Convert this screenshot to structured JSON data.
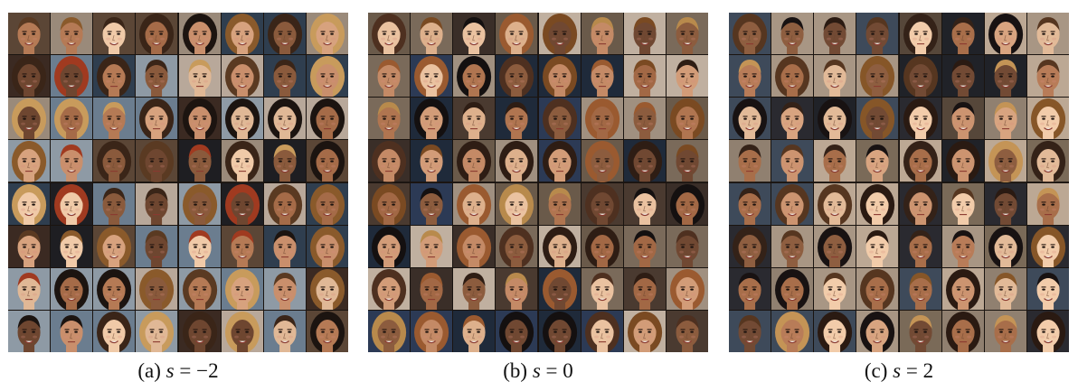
{
  "panels": [
    {
      "caption": {
        "prefix": "(a)",
        "variable": "s",
        "relation": "=",
        "value": "−2"
      },
      "grid": {
        "rows": 8,
        "cols": 8
      },
      "palette": [
        "#c98f6c",
        "#b57a55",
        "#e0b896",
        "#8a5a3c",
        "#d7a27e",
        "#a56b48",
        "#f0caa8",
        "#6e4630"
      ],
      "backgrounds": [
        "#6b7d8f",
        "#3b2a22",
        "#9a8a7a",
        "#2f3e4f",
        "#b8a89a",
        "#5b4636",
        "#1e1e22",
        "#8e9aa5"
      ],
      "hair": [
        "#3a2518",
        "#8a5a2b",
        "#1c1410",
        "#c89b5c",
        "#5a3a22",
        "#a03a20"
      ]
    },
    {
      "caption": {
        "prefix": "(b)",
        "variable": "s",
        "relation": "=",
        "value": "0"
      },
      "grid": {
        "rows": 8,
        "cols": 8
      },
      "palette": [
        "#c48a66",
        "#b07550",
        "#ddb08c",
        "#8c5c3e",
        "#d29c78",
        "#a26845",
        "#eac2a0",
        "#704832"
      ],
      "backgrounds": [
        "#6a5a4a",
        "#2c3a55",
        "#a09080",
        "#4a3a30",
        "#c0b0a0",
        "#1f2a3a",
        "#7a6a5a",
        "#3a2e28"
      ],
      "hair": [
        "#2e1d14",
        "#7a4a22",
        "#141010",
        "#b88a4c",
        "#4e3020",
        "#9a5a30"
      ]
    },
    {
      "caption": {
        "prefix": "(c)",
        "variable": "s",
        "relation": "=",
        "value": "2"
      },
      "grid": {
        "rows": 8,
        "cols": 8
      },
      "palette": [
        "#cc9470",
        "#b87c58",
        "#e2ba98",
        "#8e5e40",
        "#d8a480",
        "#a86e4a",
        "#f2ccaa",
        "#724a34"
      ],
      "backgrounds": [
        "#7a6a58",
        "#2a2a30",
        "#a89684",
        "#3e4a5a",
        "#bca894",
        "#56473a",
        "#202228",
        "#908070"
      ],
      "hair": [
        "#342218",
        "#865628",
        "#181212",
        "#c49456",
        "#563620",
        "#2a1a12"
      ]
    }
  ]
}
